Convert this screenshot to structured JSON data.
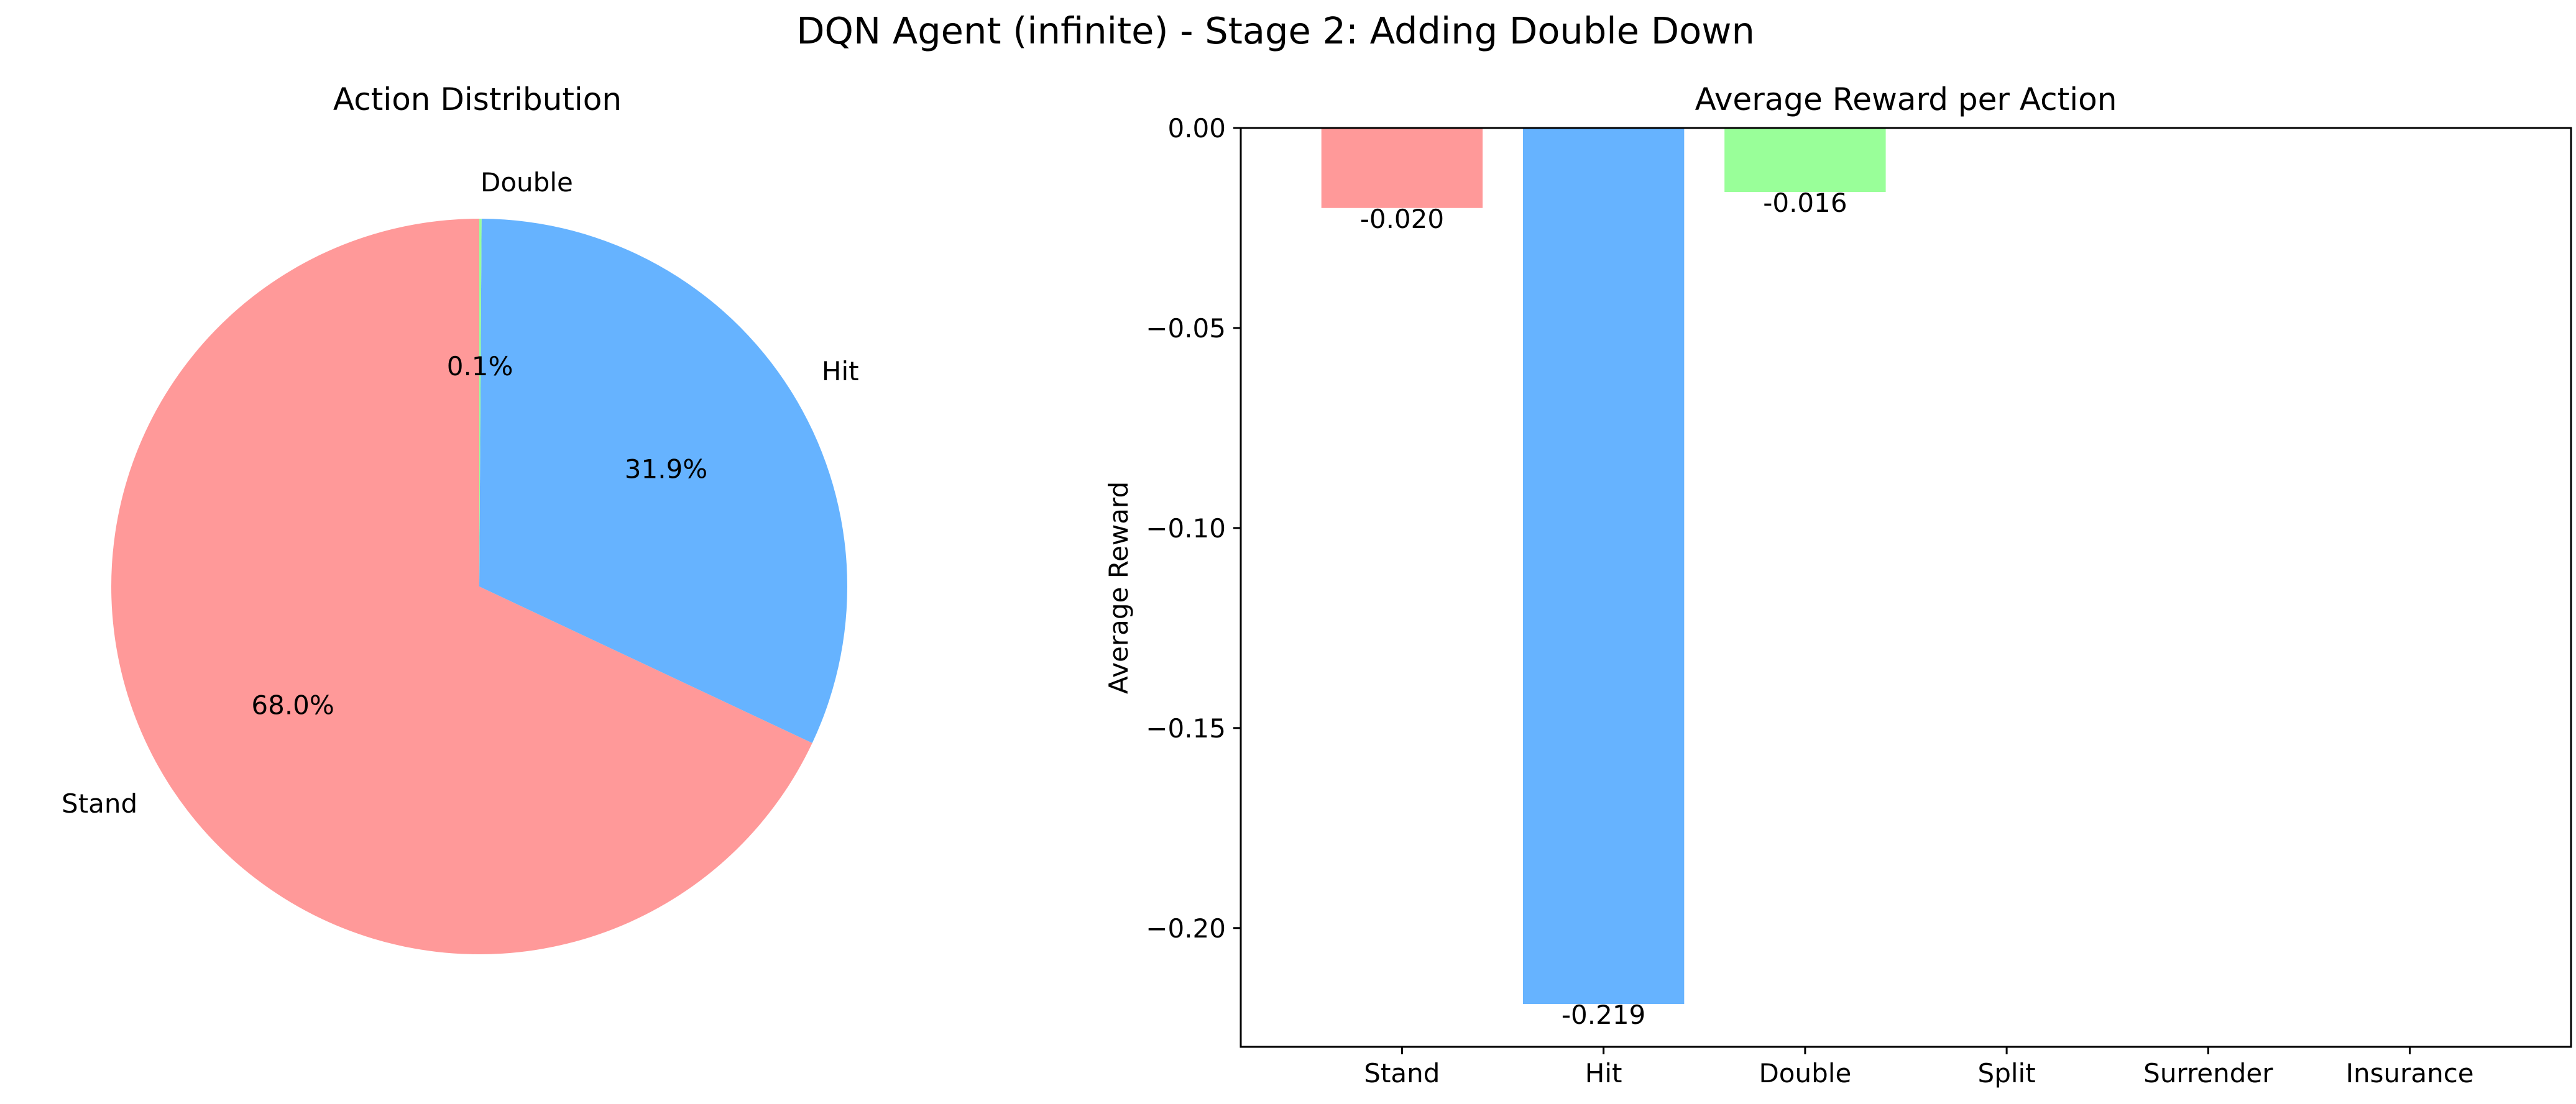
{
  "figure": {
    "title": "DQN Agent (infinite) - Stage 2: Adding Double Down"
  },
  "chart_data": [
    {
      "type": "pie",
      "title": "Action Distribution",
      "labels": [
        "Stand",
        "Hit",
        "Double"
      ],
      "values": [
        68.0,
        31.9,
        0.1
      ],
      "value_labels": [
        "68.0%",
        "31.9%",
        "0.1%"
      ],
      "colors": [
        "#ff9999",
        "#66b3ff",
        "#99ff99"
      ],
      "start_angle_deg": 90,
      "direction": "counterclockwise"
    },
    {
      "type": "bar",
      "title": "Average Reward per Action",
      "categories": [
        "Stand",
        "Hit",
        "Double",
        "Split",
        "Surrender",
        "Insurance"
      ],
      "values": [
        -0.02,
        -0.219,
        -0.016,
        null,
        null,
        null
      ],
      "value_labels": [
        "-0.020",
        "-0.219",
        "-0.016",
        null,
        null,
        null
      ],
      "colors": [
        "#ff9999",
        "#66b3ff",
        "#99ff99"
      ],
      "xlabel": "",
      "ylabel": "Average Reward",
      "ylim": [
        -0.2297,
        0.0
      ],
      "yticks": [
        0.0,
        -0.05,
        -0.1,
        -0.15,
        -0.2
      ],
      "ytick_labels": [
        "0.00",
        "−0.05",
        "−0.10",
        "−0.15",
        "−0.20"
      ],
      "grid": false
    }
  ]
}
